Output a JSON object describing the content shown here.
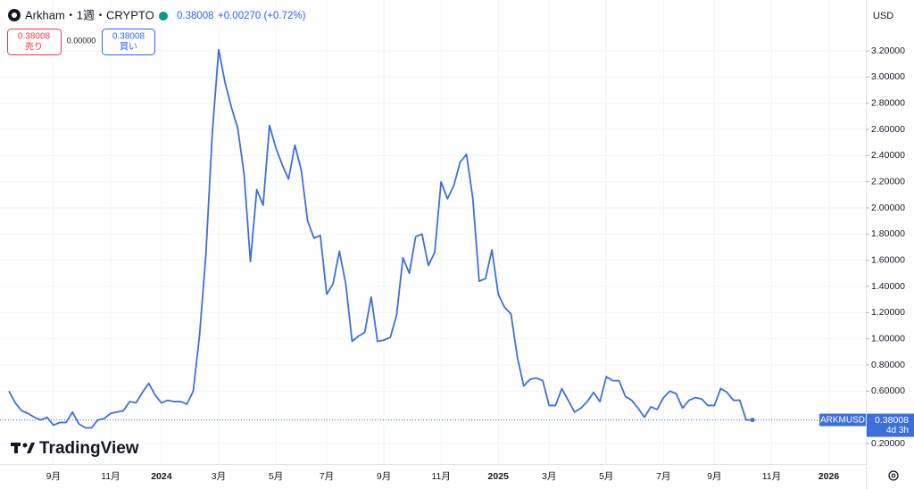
{
  "chart_data": {
    "type": "line",
    "title": "Arkham・1週・CRYPTO",
    "last_price": "0.38008",
    "change": "+0.00270 (+0.72%)",
    "currency": "USD",
    "symbol": "ARKMUSD",
    "countdown": "4d 3h",
    "brand": "TradingView",
    "sell": {
      "price": "0.38008",
      "label": "売り"
    },
    "spread": "0.00000",
    "buy": {
      "price": "0.38008",
      "label": "買い"
    },
    "categories": [
      null,
      null,
      null,
      null,
      null,
      null,
      null,
      "9月",
      null,
      null,
      null,
      null,
      null,
      null,
      null,
      null,
      "11月",
      null,
      null,
      null,
      null,
      null,
      null,
      null,
      "2024",
      null,
      null,
      null,
      null,
      null,
      null,
      null,
      null,
      "3月",
      null,
      null,
      null,
      null,
      null,
      null,
      null,
      null,
      "5月",
      null,
      null,
      null,
      null,
      null,
      null,
      null,
      "7月",
      null,
      null,
      null,
      null,
      null,
      null,
      null,
      null,
      "9月",
      null,
      null,
      null,
      null,
      null,
      null,
      null,
      null,
      "11月",
      null,
      null,
      null,
      null,
      null,
      null,
      null,
      null,
      "2025",
      null,
      null,
      null,
      null,
      null,
      null,
      null,
      "3月",
      null,
      null,
      null,
      null,
      null,
      null,
      null,
      null,
      "5月",
      null,
      null,
      null,
      null,
      null,
      null,
      null,
      null,
      "7月",
      null,
      null,
      null,
      null,
      null,
      null,
      null,
      "9月",
      null,
      null,
      null,
      null,
      null,
      null,
      null,
      null,
      "11月",
      null,
      null,
      null,
      null,
      null,
      null,
      null,
      null,
      "2026",
      null,
      null,
      null,
      null,
      null
    ],
    "series": [
      {
        "name": "ARKMUSD",
        "color": "#3d6fdb",
        "values": [
          0.6,
          0.51,
          0.45,
          0.43,
          0.4,
          0.38,
          0.4,
          0.34,
          0.36,
          0.36,
          0.44,
          0.35,
          0.32,
          0.32,
          0.38,
          0.39,
          0.43,
          0.44,
          0.45,
          0.52,
          0.51,
          0.59,
          0.66,
          0.57,
          0.51,
          0.53,
          0.52,
          0.52,
          0.5,
          0.6,
          1.03,
          1.65,
          2.57,
          3.21,
          2.96,
          2.77,
          2.61,
          2.26,
          1.59,
          2.14,
          2.02,
          2.63,
          2.46,
          2.33,
          2.22,
          2.48,
          2.29,
          1.9,
          1.77,
          1.79,
          1.34,
          1.42,
          1.67,
          1.42,
          0.98,
          1.02,
          1.05,
          1.32,
          0.98,
          0.99,
          1.01,
          1.18,
          1.62,
          1.5,
          1.78,
          1.8,
          1.56,
          1.66,
          2.2,
          2.07,
          2.17,
          2.35,
          2.41,
          2.07,
          1.44,
          1.46,
          1.68,
          1.34,
          1.24,
          1.19,
          0.86,
          0.64,
          0.69,
          0.7,
          0.68,
          0.49,
          0.49,
          0.62,
          0.53,
          0.44,
          0.47,
          0.52,
          0.59,
          0.52,
          0.71,
          0.68,
          0.68,
          0.56,
          0.53,
          0.47,
          0.4,
          0.48,
          0.46,
          0.55,
          0.6,
          0.58,
          0.47,
          0.53,
          0.55,
          0.54,
          0.49,
          0.49,
          0.62,
          0.59,
          0.53,
          0.53,
          0.38,
          0.38008,
          null,
          null,
          null,
          null,
          null,
          null,
          null,
          null,
          null,
          null,
          null,
          null,
          null,
          null,
          null,
          null,
          null
        ]
      }
    ],
    "ylim": [
      0.043,
      3.589
    ],
    "yticks": [
      {
        "value": 0.2,
        "label": "0.20000"
      },
      {
        "value": 0.6,
        "label": "0.60000"
      },
      {
        "value": 0.8,
        "label": "0.80000"
      },
      {
        "value": 1.0,
        "label": "1.00000"
      },
      {
        "value": 1.2,
        "label": "1.20000"
      },
      {
        "value": 1.4,
        "label": "1.40000"
      },
      {
        "value": 1.6,
        "label": "1.60000"
      },
      {
        "value": 1.8,
        "label": "1.80000"
      },
      {
        "value": 2.0,
        "label": "2.00000"
      },
      {
        "value": 2.2,
        "label": "2.20000"
      },
      {
        "value": 2.4,
        "label": "2.40000"
      },
      {
        "value": 2.6,
        "label": "2.60000"
      },
      {
        "value": 2.8,
        "label": "2.80000"
      },
      {
        "value": 3.0,
        "label": "3.00000"
      },
      {
        "value": 3.2,
        "label": "3.20000"
      }
    ],
    "grid": true
  }
}
